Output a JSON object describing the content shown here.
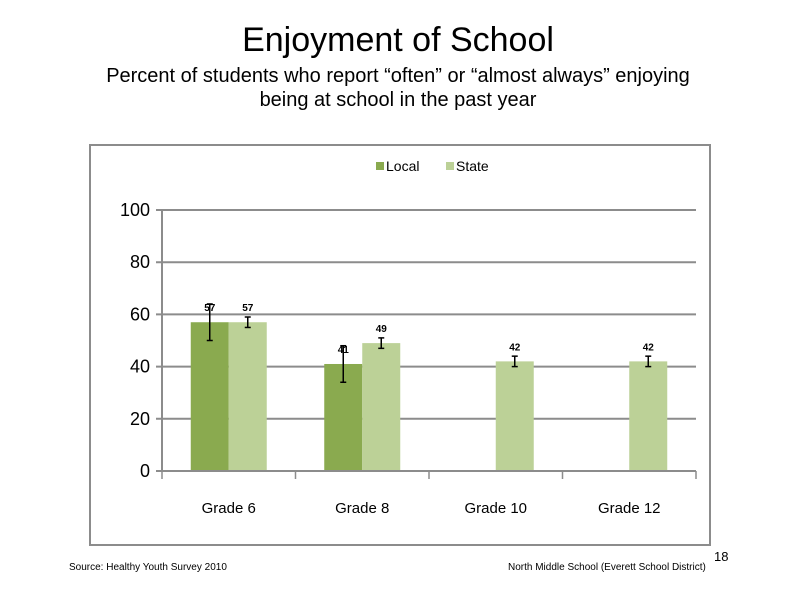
{
  "slide": {
    "title": "Enjoyment of School",
    "subtitle_line1": "Percent of students who report “often” or “almost always” enjoying",
    "subtitle_line2": "being at school in the past year",
    "source": "Source: Healthy Youth Survey 2010",
    "school": "North Middle  School (Everett School District)",
    "page_number": "18"
  },
  "colors": {
    "local": "#8aaa4f",
    "state": "#bcd197",
    "gridline": "#8c8c8c",
    "axis": "#8c8c8c"
  },
  "chart_data": {
    "type": "bar",
    "categories": [
      "Grade 6",
      "Grade 8",
      "Grade 10",
      "Grade 12"
    ],
    "series": [
      {
        "name": "Local",
        "values": [
          57,
          41,
          null,
          null
        ],
        "labels": [
          "57",
          "41",
          "",
          ""
        ],
        "error_low": [
          50,
          34,
          null,
          null
        ],
        "error_high": [
          64,
          48,
          null,
          null
        ]
      },
      {
        "name": "State",
        "values": [
          57,
          49,
          42,
          42
        ],
        "labels": [
          "57",
          "49",
          "42",
          "42"
        ],
        "error_low": [
          55,
          47,
          40,
          40
        ],
        "error_high": [
          59,
          51,
          44,
          44
        ]
      }
    ],
    "title": "",
    "xlabel": "",
    "ylabel": "",
    "ylim": [
      0,
      100
    ],
    "yticks": [
      "0",
      "20",
      "40",
      "60",
      "80",
      "100"
    ],
    "grid": true,
    "legend": "top-center"
  }
}
